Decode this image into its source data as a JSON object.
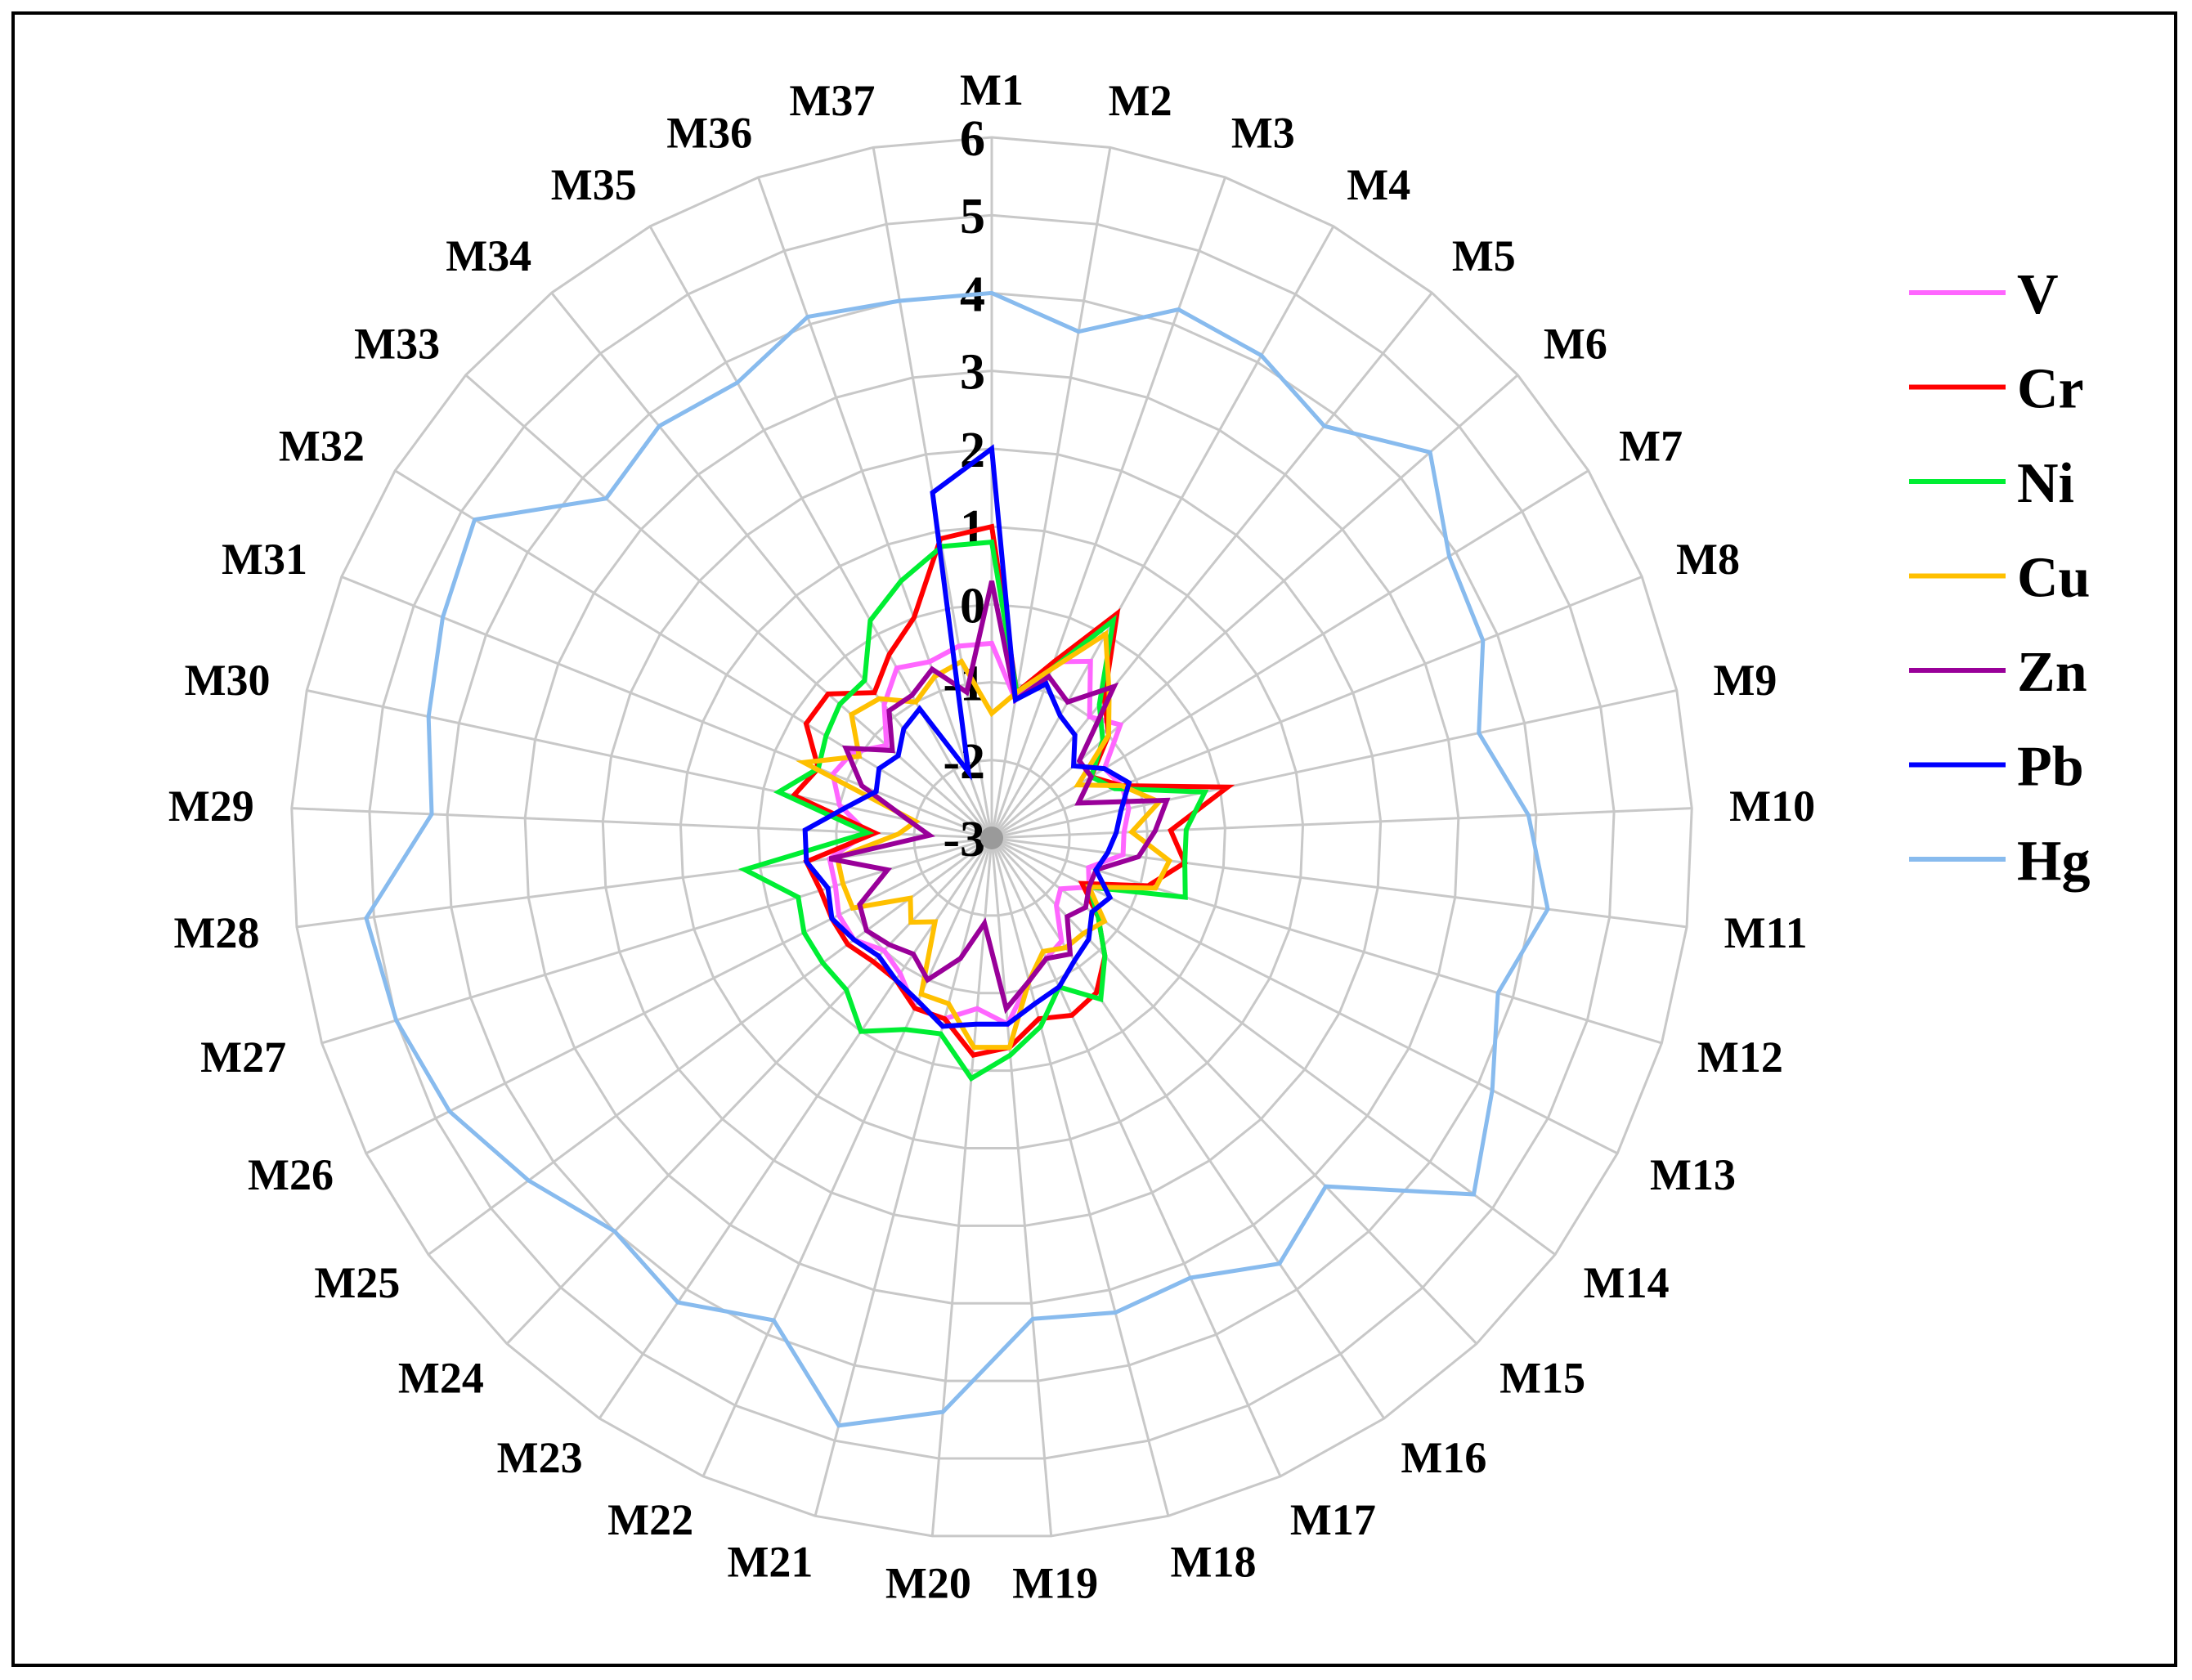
{
  "chart_data": {
    "type": "radar",
    "categories": [
      "M1",
      "M2",
      "M3",
      "M4",
      "M5",
      "M6",
      "M7",
      "M8",
      "M9",
      "M10",
      "M11",
      "M12",
      "M13",
      "M14",
      "M15",
      "M16",
      "M17",
      "M18",
      "M19",
      "M20",
      "M21",
      "M22",
      "M23",
      "M24",
      "M25",
      "M26",
      "M27",
      "M28",
      "M29",
      "M30",
      "M31",
      "M32",
      "M33",
      "M34",
      "M35",
      "M36",
      "M37"
    ],
    "rlim": [
      -3,
      6
    ],
    "ticks": [
      -3,
      -2,
      -1,
      0,
      1,
      2,
      3,
      4,
      5,
      6
    ],
    "tick_labels": [
      "-3",
      "-2",
      "-1",
      "0",
      "1",
      "2",
      "3",
      "4",
      "5",
      "6"
    ],
    "grid": true,
    "legend_position": "right",
    "series": [
      {
        "name": "V",
        "color": "#ff66ff",
        "values": [
          -0.5,
          -1.2,
          -0.6,
          -0.4,
          -1.0,
          -0.8,
          -1.3,
          -1.2,
          -1.2,
          -1.3,
          -1.3,
          -1.7,
          -1.6,
          -1.9,
          -1.8,
          -1.4,
          -1.3,
          -1.1,
          -0.6,
          -0.8,
          -0.6,
          -0.6,
          -0.9,
          -1.0,
          -0.8,
          -0.8,
          -0.9,
          -0.9,
          -1.4,
          -1.0,
          -0.8,
          -0.9,
          -1.2,
          -0.8,
          -0.5,
          -0.6,
          -0.5
        ]
      },
      {
        "name": "Cr",
        "color": "#ff0000",
        "values": [
          1.0,
          -1.1,
          -0.6,
          0.3,
          -0.7,
          -1.0,
          -1.5,
          -1.2,
          0.1,
          -0.7,
          -0.5,
          -0.9,
          -1.7,
          -1.3,
          -0.9,
          -0.6,
          -0.5,
          -0.6,
          -0.3,
          -0.2,
          -0.6,
          -0.6,
          -0.8,
          -0.8,
          -0.7,
          -0.7,
          -0.7,
          -0.6,
          -1.5,
          -0.4,
          -0.6,
          -0.2,
          -0.2,
          -0.6,
          -0.3,
          0.0,
          0.9
        ]
      },
      {
        "name": "Ni",
        "color": "#00ee33",
        "values": [
          0.8,
          -1.1,
          -0.7,
          0.2,
          -0.8,
          -1.1,
          -1.5,
          -1.3,
          -0.2,
          -0.5,
          -0.5,
          -0.4,
          -1.6,
          -1.3,
          -0.9,
          -0.5,
          -0.9,
          -0.5,
          -0.2,
          0.1,
          -0.4,
          -0.3,
          0.0,
          -0.3,
          -0.3,
          -0.3,
          -0.4,
          0.2,
          -1.4,
          -0.2,
          -0.6,
          -0.5,
          -0.4,
          -0.4,
          0.2,
          0.5,
          0.8
        ]
      },
      {
        "name": "Cu",
        "color": "#ffc000",
        "values": [
          -1.4,
          -1.1,
          -0.7,
          0.0,
          -0.6,
          -1.0,
          -1.7,
          -1.2,
          -0.8,
          -1.2,
          -0.7,
          -0.8,
          -1.6,
          -1.2,
          -1.3,
          -1.3,
          -1.4,
          -1.1,
          -0.3,
          -0.3,
          -0.8,
          -0.8,
          -1.7,
          -1.5,
          -1.7,
          -1.0,
          -1.0,
          -1.0,
          -1.8,
          -2.0,
          -0.4,
          -1.0,
          -0.6,
          -0.7,
          -1.0,
          -0.8,
          -0.7
        ]
      },
      {
        "name": "Zn",
        "color": "#990099",
        "values": [
          0.3,
          -1.2,
          -0.8,
          -1.0,
          -0.5,
          -1.5,
          -1.5,
          -1.8,
          -0.7,
          -0.9,
          -1.1,
          -1.6,
          -1.6,
          -1.5,
          -1.6,
          -1.2,
          -1.3,
          -1.1,
          -0.8,
          -1.9,
          -1.4,
          -1.0,
          -1.2,
          -1.1,
          -1.0,
          -1.1,
          -1.6,
          -0.9,
          -2.2,
          -1.9,
          -1.2,
          -0.8,
          -1.3,
          -0.9,
          -0.9,
          -0.7,
          -1.1
        ]
      },
      {
        "name": "Pb",
        "color": "#0000ff",
        "values": [
          2.0,
          -1.2,
          -0.9,
          -1.2,
          -1.3,
          -1.6,
          -1.3,
          -1.1,
          -1.3,
          -1.4,
          -1.5,
          -1.6,
          -1.3,
          -1.4,
          -1.2,
          -1.1,
          -0.9,
          -0.8,
          -0.6,
          -0.6,
          -0.5,
          -0.7,
          -0.8,
          -0.9,
          -0.8,
          -0.7,
          -0.8,
          -0.6,
          -0.6,
          -1.1,
          -1.4,
          -1.3,
          -1.4,
          -1.2,
          -1.1,
          -2.1,
          1.5
        ]
      },
      {
        "name": "Hg",
        "color": "#88bbee",
        "values": [
          4.0,
          3.6,
          4.2,
          4.1,
          3.8,
          4.5,
          3.9,
          3.8,
          3.4,
          3.9,
          4.2,
          3.8,
          4.2,
          4.7,
          3.2,
          3.6,
          3.2,
          3.3,
          3.2,
          4.4,
          4.8,
          3.8,
          4.2,
          4.0,
          4.4,
          4.8,
          5.0,
          5.1,
          4.2,
          4.4,
          4.6,
          4.8,
          3.6,
          3.8,
          3.7,
          4.1,
          4.0
        ]
      }
    ]
  }
}
